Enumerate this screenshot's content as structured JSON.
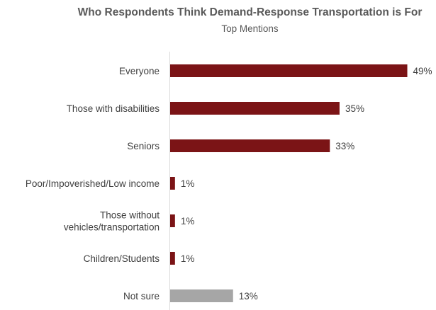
{
  "chart_data": {
    "type": "bar",
    "orientation": "horizontal",
    "title": "Who Respondents Think Demand-Response Transportation is For",
    "subtitle": "Top Mentions",
    "categories": [
      [
        "Everyone"
      ],
      [
        "Those with disabilities"
      ],
      [
        "Seniors"
      ],
      [
        "Poor/Impoverished/Low income"
      ],
      [
        "Those without",
        "vehicles/transportation"
      ],
      [
        "Children/Students"
      ],
      [
        "Not sure"
      ]
    ],
    "values": [
      49,
      35,
      33,
      1,
      1,
      1,
      13
    ],
    "value_labels": [
      "49%",
      "35%",
      "33%",
      "1%",
      "1%",
      "1%",
      "13%"
    ],
    "bar_colors": [
      "#7b1416",
      "#7b1416",
      "#7b1416",
      "#7b1416",
      "#7b1416",
      "#7b1416",
      "#a6a6a6"
    ],
    "xlim": [
      0,
      52
    ],
    "grid": false,
    "legend": "none"
  }
}
